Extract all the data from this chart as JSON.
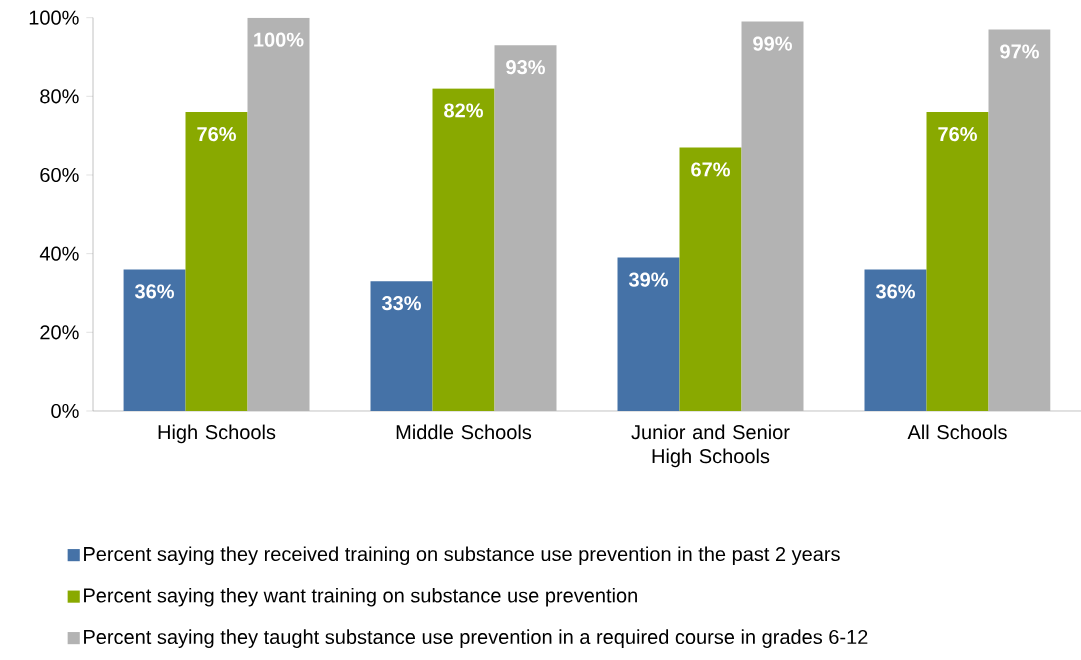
{
  "chart_data": {
    "type": "bar",
    "categories": [
      "High Schools",
      "Middle Schools",
      "Junior and Senior High Schools",
      "All Schools"
    ],
    "series": [
      {
        "name": "Percent saying they received training on substance use prevention in the past 2 years",
        "color": "#4572a7",
        "values": [
          36,
          33,
          39,
          36
        ],
        "value_labels": [
          "36%",
          "33%",
          "39%",
          "36%"
        ]
      },
      {
        "name": "Percent saying they want training on substance use prevention",
        "color": "#89a900",
        "values": [
          76,
          82,
          67,
          76
        ],
        "value_labels": [
          "76%",
          "82%",
          "67%",
          "76%"
        ]
      },
      {
        "name": "Percent saying they taught substance use prevention in a required course in grades 6-12",
        "color": "#b3b3b3",
        "values": [
          100,
          93,
          99,
          97
        ],
        "value_labels": [
          "100%",
          "93%",
          "99%",
          "97%"
        ]
      }
    ],
    "ylim": [
      0,
      100
    ],
    "yticks": [
      {
        "value": 0,
        "label": "0%"
      },
      {
        "value": 20,
        "label": "20%"
      },
      {
        "value": 40,
        "label": "40%"
      },
      {
        "value": 60,
        "label": "60%"
      },
      {
        "value": 80,
        "label": "80%"
      },
      {
        "value": 100,
        "label": "100%"
      }
    ],
    "grid": false,
    "legend": "bottom"
  }
}
